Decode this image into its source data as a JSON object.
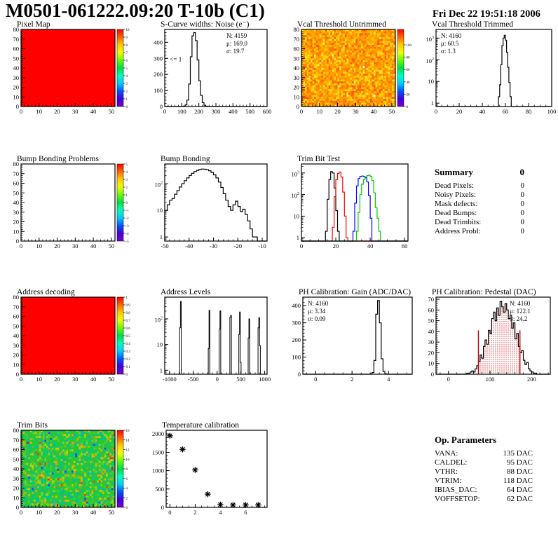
{
  "header": {
    "title": "M0501-061222.09:20 T-10b (C1)",
    "date": "Fri Dec 22 19:51:18 2006"
  },
  "summary": {
    "title": "Summary",
    "total": "0",
    "rows": [
      {
        "label": "Dead Pixels:",
        "value": "0"
      },
      {
        "label": "Noisy Pixels:",
        "value": "0"
      },
      {
        "label": "Mask defects:",
        "value": "0"
      },
      {
        "label": "Dead Bumps:",
        "value": "0"
      },
      {
        "label": "Dead Trimbits:",
        "value": "0"
      },
      {
        "label": "Address Probl:",
        "value": "0"
      }
    ]
  },
  "op_parameters": {
    "title": "Op. Parameters",
    "rows": [
      {
        "label": "VANA:",
        "value": "135 DAC"
      },
      {
        "label": "CALDEL:",
        "value": "95 DAC"
      },
      {
        "label": "VTHR:",
        "value": "88 DAC"
      },
      {
        "label": "VTRIM:",
        "value": "118 DAC"
      },
      {
        "label": "IBIAS_DAC:",
        "value": "64 DAC"
      },
      {
        "label": "VOFFSETOP:",
        "value": "62 DAC"
      }
    ]
  },
  "rainbow": [
    "#ff0000",
    "#ff6600",
    "#ffcc00",
    "#eeff00",
    "#66ff00",
    "#00dd44",
    "#00ffbb",
    "#00ccff",
    "#0055ff",
    "#4400dd",
    "#7700cc"
  ],
  "chart_data": [
    {
      "id": "pixel-map",
      "title": "Pixel Map",
      "type": "heatmap",
      "margins": {
        "l": 30,
        "t": 14,
        "r": 36,
        "b": 21
      },
      "x": {
        "min": 0,
        "max": 52,
        "ticks": [
          0,
          10,
          20,
          30,
          40,
          50
        ],
        "minor": 2
      },
      "y": {
        "min": 0,
        "max": 80,
        "ticks": [
          0,
          10,
          20,
          30,
          40,
          50,
          60,
          70,
          80
        ],
        "minor": 2
      },
      "content": {
        "kind": "fill",
        "color": "#ff0000"
      },
      "colorbar": {
        "min": 0,
        "max": 10,
        "ticks": [
          0,
          1,
          2,
          3,
          4,
          5,
          6,
          7,
          8,
          9,
          10
        ],
        "labels": [
          "0",
          "1",
          "2",
          "3",
          "4",
          "5",
          "6",
          "7",
          "8",
          "9",
          "10"
        ]
      }
    },
    {
      "id": "scurve",
      "title": "S-Curve widths: Noise (e⁻)",
      "type": "histogram",
      "margins": {
        "l": 30,
        "t": 14,
        "r": 24,
        "b": 21
      },
      "x": {
        "min": 0,
        "max": 600,
        "ticks": [
          0,
          100,
          200,
          300,
          400,
          500,
          600
        ],
        "minor": 20
      },
      "y": {
        "min": 0,
        "max": 480,
        "ticks": [
          0,
          100,
          200,
          300,
          400
        ],
        "minor": 20
      },
      "content": {
        "kind": "hist",
        "color": "#000000",
        "x0": 100,
        "dx": 10,
        "counts": [
          1,
          3,
          10,
          40,
          140,
          310,
          440,
          460,
          410,
          290,
          160,
          70,
          25,
          8,
          2,
          1
        ]
      },
      "stats": {
        "pos": "tr",
        "lines": [
          {
            "text": "N: 4159"
          },
          {
            "text": "μ: 169.0"
          },
          {
            "text": "σ: 19.7"
          }
        ]
      },
      "annotation": {
        "text": "<= 1",
        "x": 30,
        "y": 295
      }
    },
    {
      "id": "vcal-untrimmed",
      "title": "Vcal Threshold Untrimmed",
      "type": "heatmap",
      "margins": {
        "l": 30,
        "t": 14,
        "r": 36,
        "b": 21
      },
      "x": {
        "min": 0,
        "max": 52,
        "ticks": [
          0,
          10,
          20,
          30,
          40,
          50
        ],
        "minor": 2
      },
      "y": {
        "min": 0,
        "max": 80,
        "ticks": [
          0,
          10,
          20,
          30,
          40,
          50,
          60,
          70,
          80
        ],
        "minor": 2
      },
      "content": {
        "kind": "noise",
        "seed": 12345,
        "nx": 52,
        "ny": 40,
        "palette": [
          "#ff5500",
          "#ff7700",
          "#ff9900",
          "#ffaa00",
          "#ffcc00",
          "#ffdd11",
          "#ffee44",
          "#ffffff"
        ],
        "weights": [
          0.06,
          0.22,
          0.26,
          0.2,
          0.15,
          0.08,
          0.029,
          0.001
        ]
      },
      "colorbar": {
        "min": 0,
        "max": 125,
        "ticks": [
          0,
          20,
          40,
          60,
          80,
          100
        ],
        "labels": [
          "0",
          "20",
          "40",
          "60",
          "80",
          "100"
        ]
      }
    },
    {
      "id": "vcal-trimmed",
      "title": "Vcal Threshold Trimmed",
      "type": "histogram",
      "margins": {
        "l": 27,
        "t": 14,
        "r": 8,
        "b": 21
      },
      "x": {
        "min": 0,
        "max": 100,
        "ticks": [
          0,
          20,
          40,
          60,
          80,
          100
        ],
        "minor": 5
      },
      "y": {
        "min": 0.7,
        "max": 2500,
        "log": true
      },
      "content": {
        "kind": "hist",
        "color": "#000000",
        "x0": 54,
        "dx": 1,
        "counts": [
          2,
          7,
          60,
          450,
          1000,
          1350,
          800,
          220,
          45,
          9,
          2
        ]
      },
      "stats": {
        "pos": "tl",
        "lines": [
          {
            "text": "N: 4160"
          },
          {
            "text": "μ: 60.5"
          },
          {
            "text": "σ:  1.3"
          }
        ]
      }
    },
    {
      "id": "bump-problems",
      "title": "Bump Bonding Problems",
      "type": "heatmap",
      "margins": {
        "l": 30,
        "t": 14,
        "r": 36,
        "b": 21
      },
      "x": {
        "min": 0,
        "max": 52,
        "ticks": [
          0,
          10,
          20,
          30,
          40,
          50
        ],
        "minor": 2
      },
      "y": {
        "min": 0,
        "max": 80,
        "ticks": [
          0,
          10,
          20,
          30,
          40,
          50,
          60,
          70,
          80
        ],
        "minor": 2
      },
      "content": {
        "kind": "empty"
      },
      "colorbar": {
        "min": -5,
        "max": 5,
        "ticks": [
          -5,
          -4,
          -3,
          -2,
          -1,
          0,
          1,
          2,
          3,
          4,
          5
        ],
        "labels": [
          "-5",
          "-4",
          "-3",
          "-2",
          "-1",
          "0",
          "1",
          "2",
          "3",
          "4",
          "5"
        ]
      }
    },
    {
      "id": "bump-bonding",
      "title": "Bump Bonding",
      "type": "histogram",
      "margins": {
        "l": 30,
        "t": 14,
        "r": 24,
        "b": 21
      },
      "x": {
        "min": -50,
        "max": -8,
        "ticks": [
          -50,
          -40,
          -30,
          -20,
          -10
        ],
        "minor": 2
      },
      "y": {
        "min": 0.7,
        "max": 550,
        "log": true
      },
      "content": {
        "kind": "hist",
        "color": "#000000",
        "x0": -50,
        "dx": 1,
        "counts": [
          10,
          16,
          24,
          28,
          40,
          55,
          75,
          100,
          130,
          165,
          205,
          245,
          285,
          315,
          340,
          355,
          350,
          335,
          305,
          265,
          215,
          165,
          115,
          72,
          42,
          24,
          14,
          10,
          16,
          22,
          14,
          9,
          11,
          7,
          4,
          2,
          1,
          1,
          0,
          0
        ]
      }
    },
    {
      "id": "trim-bit-test",
      "title": "Trim Bit Test",
      "type": "histogram",
      "margins": {
        "l": 30,
        "t": 14,
        "r": 18,
        "b": 21
      },
      "x": {
        "min": 0,
        "max": 62,
        "ticks": [
          0,
          20,
          40,
          60
        ],
        "minor": 5
      },
      "y": {
        "min": 0.7,
        "max": 2600,
        "log": true
      },
      "content": {
        "kind": "hists",
        "series": [
          {
            "color": "#000000",
            "x0": 14,
            "dx": 1,
            "counts": [
              2,
              60,
              500,
              1150,
              1000,
              200,
              18,
              2
            ]
          },
          {
            "color": "#ff0000",
            "x0": 18,
            "dx": 1,
            "counts": [
              3,
              80,
              500,
              950,
              1100,
              650,
              130,
              10,
              1
            ]
          },
          {
            "color": "#0000ff",
            "x0": 30,
            "dx": 1,
            "counts": [
              2,
              40,
              250,
              550,
              700,
              720,
              680,
              600,
              380,
              90,
              8
            ]
          },
          {
            "color": "#00cc00",
            "x0": 32,
            "dx": 1,
            "counts": [
              2,
              15,
              100,
              300,
              500,
              650,
              750,
              780,
              700,
              450,
              120,
              25,
              8,
              2
            ]
          }
        ]
      }
    },
    {
      "id": "address-decoding",
      "title": "Address decoding",
      "type": "heatmap",
      "margins": {
        "l": 30,
        "t": 14,
        "r": 36,
        "b": 21
      },
      "x": {
        "min": 0,
        "max": 52,
        "ticks": [
          0,
          10,
          20,
          30,
          40,
          50
        ],
        "minor": 2
      },
      "y": {
        "min": 0,
        "max": 80,
        "ticks": [
          0,
          10,
          20,
          30,
          40,
          50,
          60,
          70,
          80
        ],
        "minor": 2
      },
      "content": {
        "kind": "fill",
        "color": "#ff0000"
      },
      "colorbar": {
        "min": 0,
        "max": 1,
        "ticks": [
          0,
          0.1,
          0.2,
          0.3,
          0.4,
          0.5,
          0.6,
          0.7,
          0.8,
          0.9,
          1
        ],
        "labels": [
          "0",
          "0.1",
          "0.2",
          "0.3",
          "0.4",
          "0.5",
          "0.6",
          "0.7",
          "0.8",
          "0.9",
          "1"
        ]
      }
    },
    {
      "id": "address-levels",
      "title": "Address Levels",
      "type": "histogram",
      "margins": {
        "l": 30,
        "t": 14,
        "r": 24,
        "b": 21
      },
      "x": {
        "min": -1100,
        "max": 1050,
        "ticks": [
          -1000,
          -500,
          0,
          500,
          1000
        ],
        "minor": 100
      },
      "y": {
        "min": 0.7,
        "max": 700,
        "log": true
      },
      "content": {
        "kind": "spikes",
        "spikes": [
          {
            "x0": -786,
            "dx": 16,
            "counts": [
              45,
              470
            ]
          },
          {
            "x0": -186,
            "dx": 16,
            "counts": [
              7,
              215
            ]
          },
          {
            "x0": 44,
            "dx": 16,
            "counts": [
              40,
              205
            ]
          },
          {
            "x0": 268,
            "dx": 16,
            "counts": [
              115,
              135
            ]
          },
          {
            "x0": 456,
            "dx": 16,
            "counts": [
              25,
              185,
              2
            ]
          },
          {
            "x0": 652,
            "dx": 16,
            "counts": [
              18,
              100
            ]
          },
          {
            "x0": 860,
            "dx": 16,
            "counts": [
              45,
              112,
              9
            ]
          }
        ]
      }
    },
    {
      "id": "ph-gain",
      "title": "PH Calibration: Gain (ADC/DAC)",
      "type": "histogram",
      "margins": {
        "l": 32,
        "t": 14,
        "r": 12,
        "b": 21
      },
      "x": {
        "min": -0.7,
        "max": 5.3,
        "ticks": [
          0,
          2,
          4
        ],
        "minor": 0.5
      },
      "y": {
        "min": 0,
        "max": 450,
        "ticks": [
          0,
          100,
          200,
          300,
          400
        ],
        "minor": 20
      },
      "content": {
        "kind": "hist",
        "color": "#000000",
        "x0": 3.0,
        "dx": 0.1,
        "counts": [
          2,
          10,
          80,
          350,
          430,
          300,
          90,
          15,
          2
        ]
      },
      "stats": {
        "pos": "tl",
        "lines": [
          {
            "text": "N: 4160"
          },
          {
            "text": "μ: 3.34"
          },
          {
            "text": "σ: 0.09"
          }
        ]
      }
    },
    {
      "id": "ph-pedestal",
      "title": "PH Calibration: Pedestal (DAC)",
      "type": "histogram",
      "margins": {
        "l": 27,
        "t": 14,
        "r": 10,
        "b": 21
      },
      "x": {
        "min": -30,
        "max": 245,
        "ticks": [
          0,
          100,
          200
        ],
        "minor": 20
      },
      "y": {
        "min": 0,
        "max": 72,
        "ticks": [
          0,
          10,
          20,
          30,
          40,
          50,
          60,
          70
        ],
        "minor": 2
      },
      "content": {
        "kind": "hist_fill",
        "color": "#000000",
        "fill_color": "#cc0000",
        "x0": 40,
        "dx": 4,
        "counts": [
          0,
          1,
          1,
          2,
          3,
          2,
          5,
          8,
          12,
          18,
          15,
          26,
          32,
          28,
          41,
          38,
          52,
          58,
          50,
          62,
          55,
          68,
          63,
          58,
          66,
          60,
          52,
          55,
          43,
          48,
          33,
          38,
          26,
          20,
          22,
          13,
          9,
          11,
          5,
          3,
          2,
          1,
          1
        ],
        "fill_between": [
          72,
          172
        ],
        "vlines": [
          72,
          172
        ],
        "vline_h": 41
      },
      "stats": {
        "pos": "tr",
        "lines": [
          {
            "text": "N: 4160",
            "color": "#000000"
          },
          {
            "text": "μ: 122.1",
            "color": "#cc0000"
          },
          {
            "text": "σ: 24.2",
            "color": "#cc0000"
          }
        ]
      }
    },
    {
      "id": "trim-bits",
      "title": "Trim Bits",
      "type": "heatmap",
      "margins": {
        "l": 30,
        "t": 14,
        "r": 36,
        "b": 21
      },
      "x": {
        "min": 0,
        "max": 52,
        "ticks": [
          0,
          10,
          20,
          30,
          40,
          50
        ],
        "minor": 2
      },
      "y": {
        "min": 0,
        "max": 80,
        "ticks": [
          0,
          10,
          20,
          30,
          40,
          50,
          60,
          70,
          80
        ],
        "minor": 2
      },
      "content": {
        "kind": "noise",
        "seed": 777,
        "nx": 52,
        "ny": 40,
        "palette": [
          "#22cc33",
          "#33bb44",
          "#00cc77",
          "#00bbaa",
          "#55cc22",
          "#99cc11",
          "#cccc00",
          "#ff9900",
          "#ff3300",
          "#2244ff"
        ],
        "weights": [
          0.3,
          0.2,
          0.12,
          0.08,
          0.12,
          0.07,
          0.06,
          0.03,
          0.01,
          0.01
        ]
      },
      "colorbar": {
        "min": 0,
        "max": 16,
        "ticks": [
          0,
          2,
          4,
          6,
          8,
          10,
          12,
          14,
          16
        ],
        "labels": [
          "0",
          "2",
          "4",
          "6",
          "8",
          "10",
          "12",
          "14",
          "16"
        ]
      }
    },
    {
      "id": "temp-cal",
      "title": "Temperature calibration",
      "type": "scatter",
      "margins": {
        "l": 32,
        "t": 14,
        "r": 24,
        "b": 21
      },
      "x": {
        "min": -0.3,
        "max": 7.7,
        "ticks": [
          0,
          2,
          4,
          6
        ],
        "minor": 0.5
      },
      "y": {
        "min": 0,
        "max": 2100,
        "ticks": [
          0,
          500,
          1000,
          1500,
          2000
        ],
        "minor": 100
      },
      "content": {
        "kind": "scatter",
        "points": [
          [
            0,
            1950
          ],
          [
            1,
            1580
          ],
          [
            2,
            1020
          ],
          [
            3,
            360
          ],
          [
            4,
            75
          ],
          [
            5,
            65
          ],
          [
            6,
            65
          ],
          [
            7,
            65
          ]
        ]
      }
    }
  ]
}
